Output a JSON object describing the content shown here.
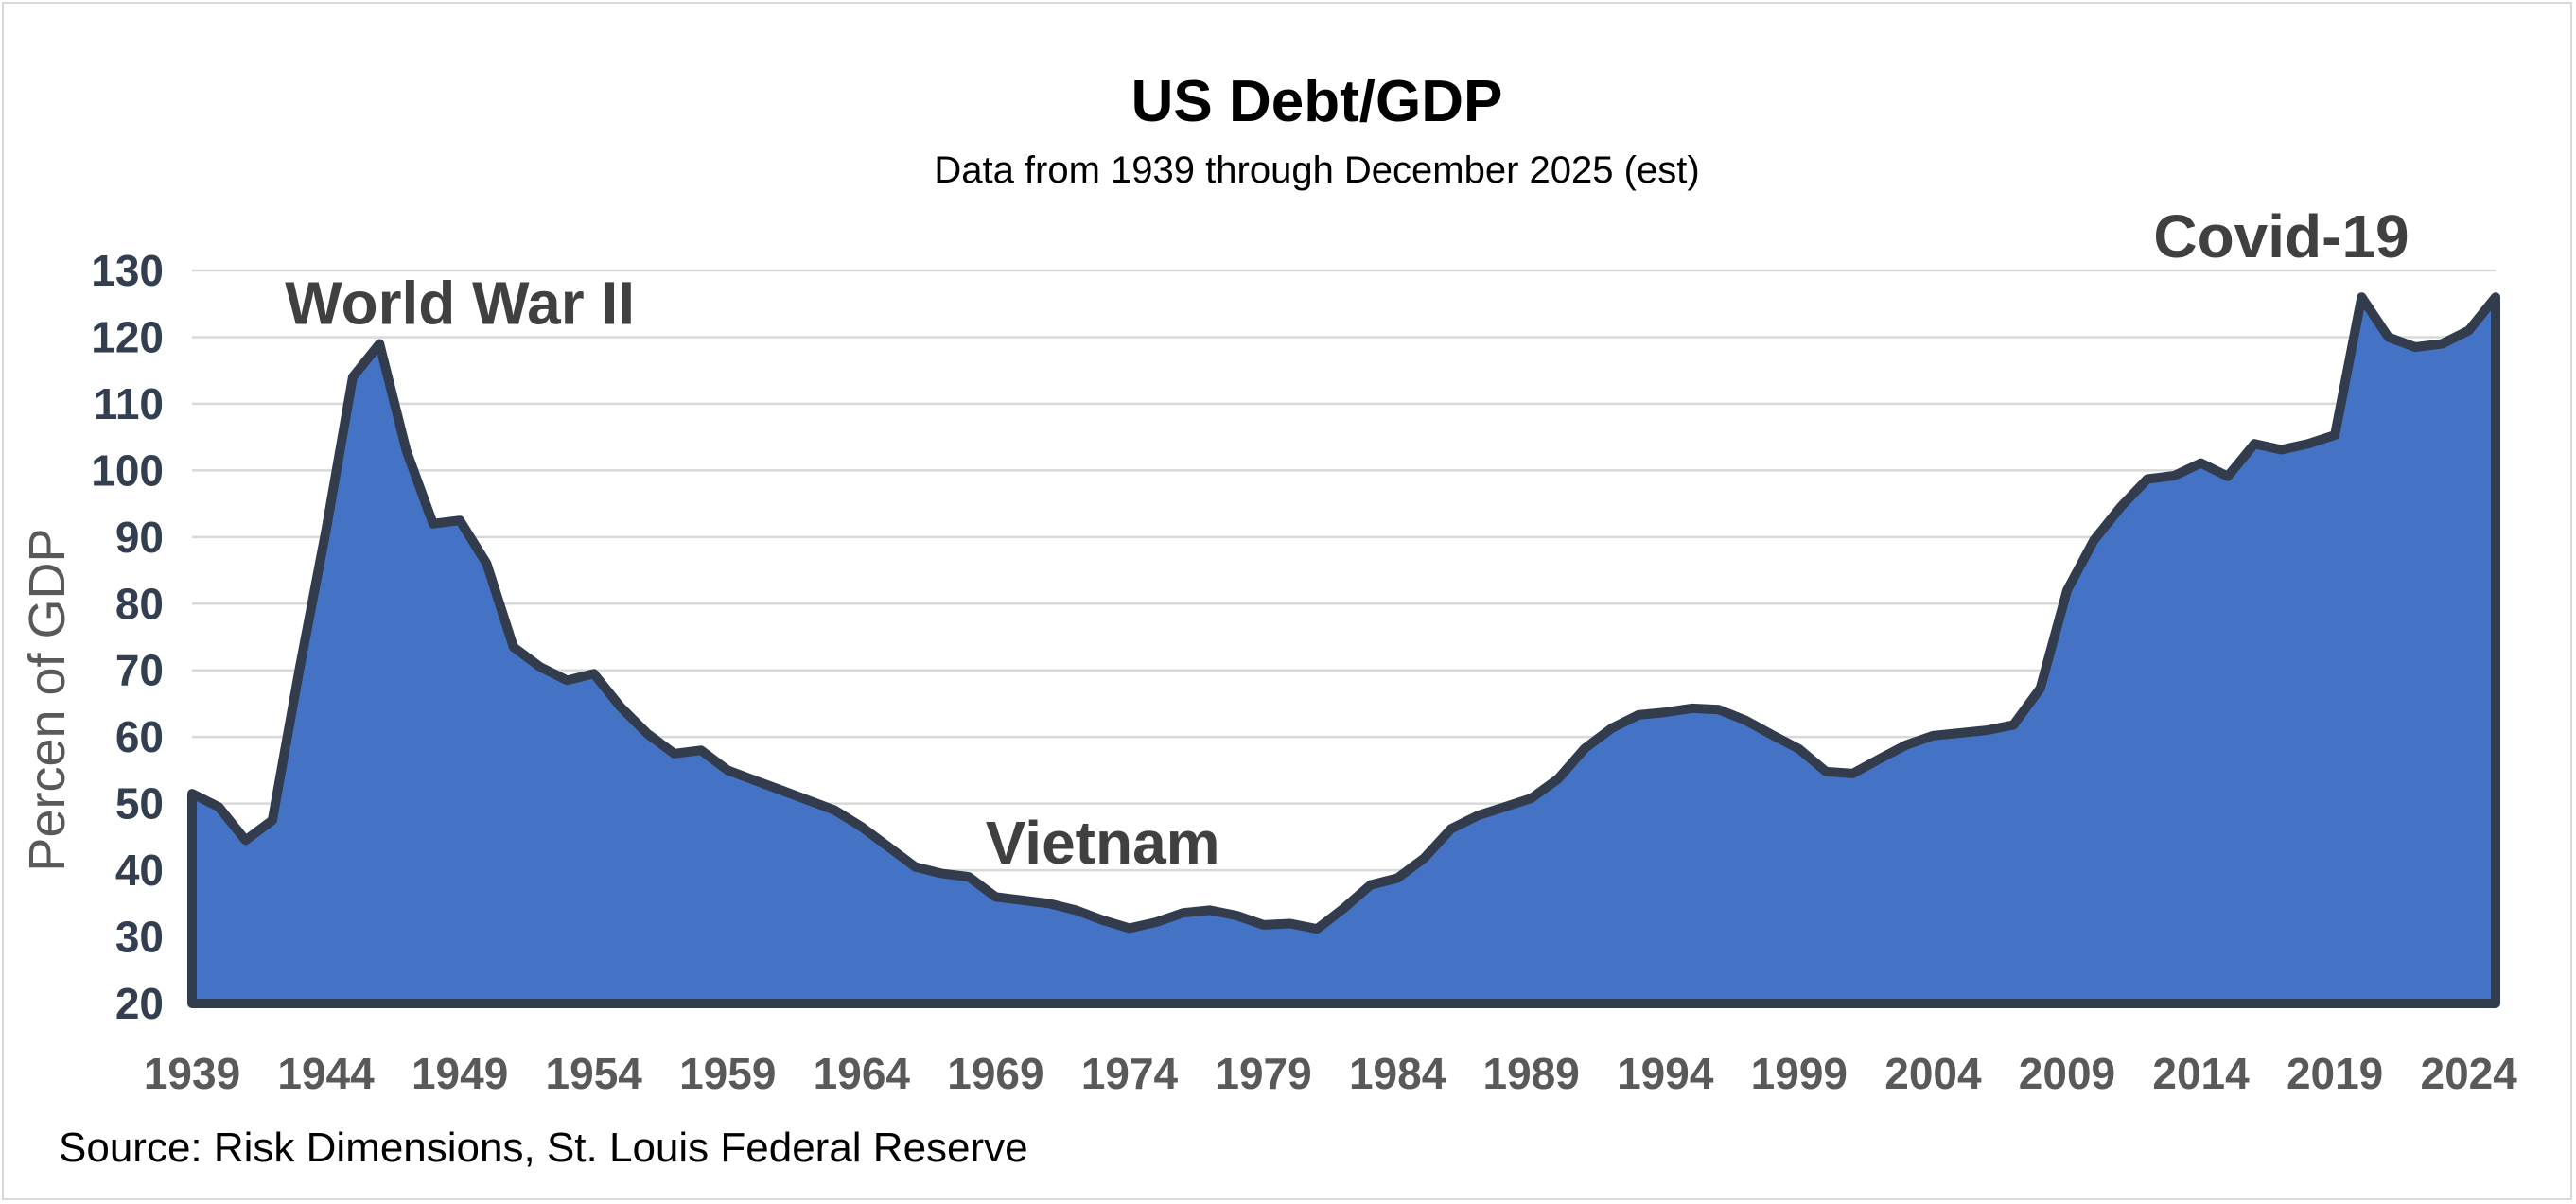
{
  "colors": {
    "area_fill": "#4472c4",
    "area_stroke": "#323c4c",
    "grid": "#d9d9d9",
    "ytick": "#333f50",
    "xtick": "#595959"
  },
  "chart_data": {
    "type": "area",
    "title": "US Debt/GDP",
    "subtitle": "Data from 1939 through December 2025 (est)",
    "xlabel": "",
    "ylabel": "Percen of GDP",
    "ylim": [
      20,
      130
    ],
    "yticks": [
      20,
      30,
      40,
      50,
      60,
      70,
      80,
      90,
      100,
      110,
      120,
      130
    ],
    "xlim": [
      1939,
      2025
    ],
    "xticks": [
      1939,
      1944,
      1949,
      1954,
      1959,
      1964,
      1969,
      1974,
      1979,
      1984,
      1989,
      1994,
      1999,
      2004,
      2009,
      2014,
      2019,
      2024
    ],
    "grid": true,
    "series": [
      {
        "name": "US Debt/GDP",
        "x": [
          1939,
          1940,
          1941,
          1942,
          1943,
          1944,
          1945,
          1946,
          1947,
          1948,
          1949,
          1950,
          1951,
          1952,
          1953,
          1954,
          1955,
          1956,
          1957,
          1958,
          1959,
          1960,
          1961,
          1962,
          1963,
          1964,
          1965,
          1966,
          1967,
          1968,
          1969,
          1970,
          1971,
          1972,
          1973,
          1974,
          1975,
          1976,
          1977,
          1978,
          1979,
          1980,
          1981,
          1982,
          1983,
          1984,
          1985,
          1986,
          1987,
          1988,
          1989,
          1990,
          1991,
          1992,
          1993,
          1994,
          1995,
          1996,
          1997,
          1998,
          1999,
          2000,
          2001,
          2002,
          2003,
          2004,
          2005,
          2006,
          2007,
          2008,
          2009,
          2010,
          2011,
          2012,
          2013,
          2014,
          2015,
          2016,
          2017,
          2018,
          2019,
          2020,
          2021,
          2022,
          2023,
          2024,
          2025
        ],
        "values": [
          51.5,
          49.5,
          44.5,
          47.5,
          70,
          91,
          114,
          119,
          103,
          92,
          92.5,
          86,
          73.5,
          70.5,
          68.5,
          69.5,
          64.5,
          60.5,
          57.5,
          58,
          55,
          53.5,
          52,
          50.5,
          49,
          46.5,
          43.5,
          40.5,
          39.5,
          39,
          36,
          35.5,
          35,
          34,
          32.5,
          31.3,
          32.2,
          33.6,
          34,
          33.2,
          31.8,
          32,
          31.2,
          34.3,
          37.8,
          38.8,
          41.8,
          46.2,
          48.2,
          49.5,
          50.8,
          53.7,
          58.3,
          61.3,
          63.3,
          63.7,
          64.3,
          64.1,
          62.5,
          60.3,
          58.2,
          54.8,
          54.5,
          56.7,
          58.8,
          60.2,
          60.6,
          61,
          61.8,
          67.3,
          82,
          89.5,
          94.5,
          98.7,
          99.2,
          101.1,
          99.1,
          104,
          103.1,
          104,
          105.3,
          126,
          120,
          118.5,
          119,
          121,
          126
        ]
      }
    ],
    "annotations": [
      {
        "text": "World War II",
        "year": 1949,
        "value": 122
      },
      {
        "text": "Vietnam",
        "year": 1973,
        "value": 41
      },
      {
        "text": "Covid-19",
        "year": 2017,
        "value": 132
      }
    ],
    "source": "Source: Risk Dimensions, St. Louis Federal Reserve"
  }
}
